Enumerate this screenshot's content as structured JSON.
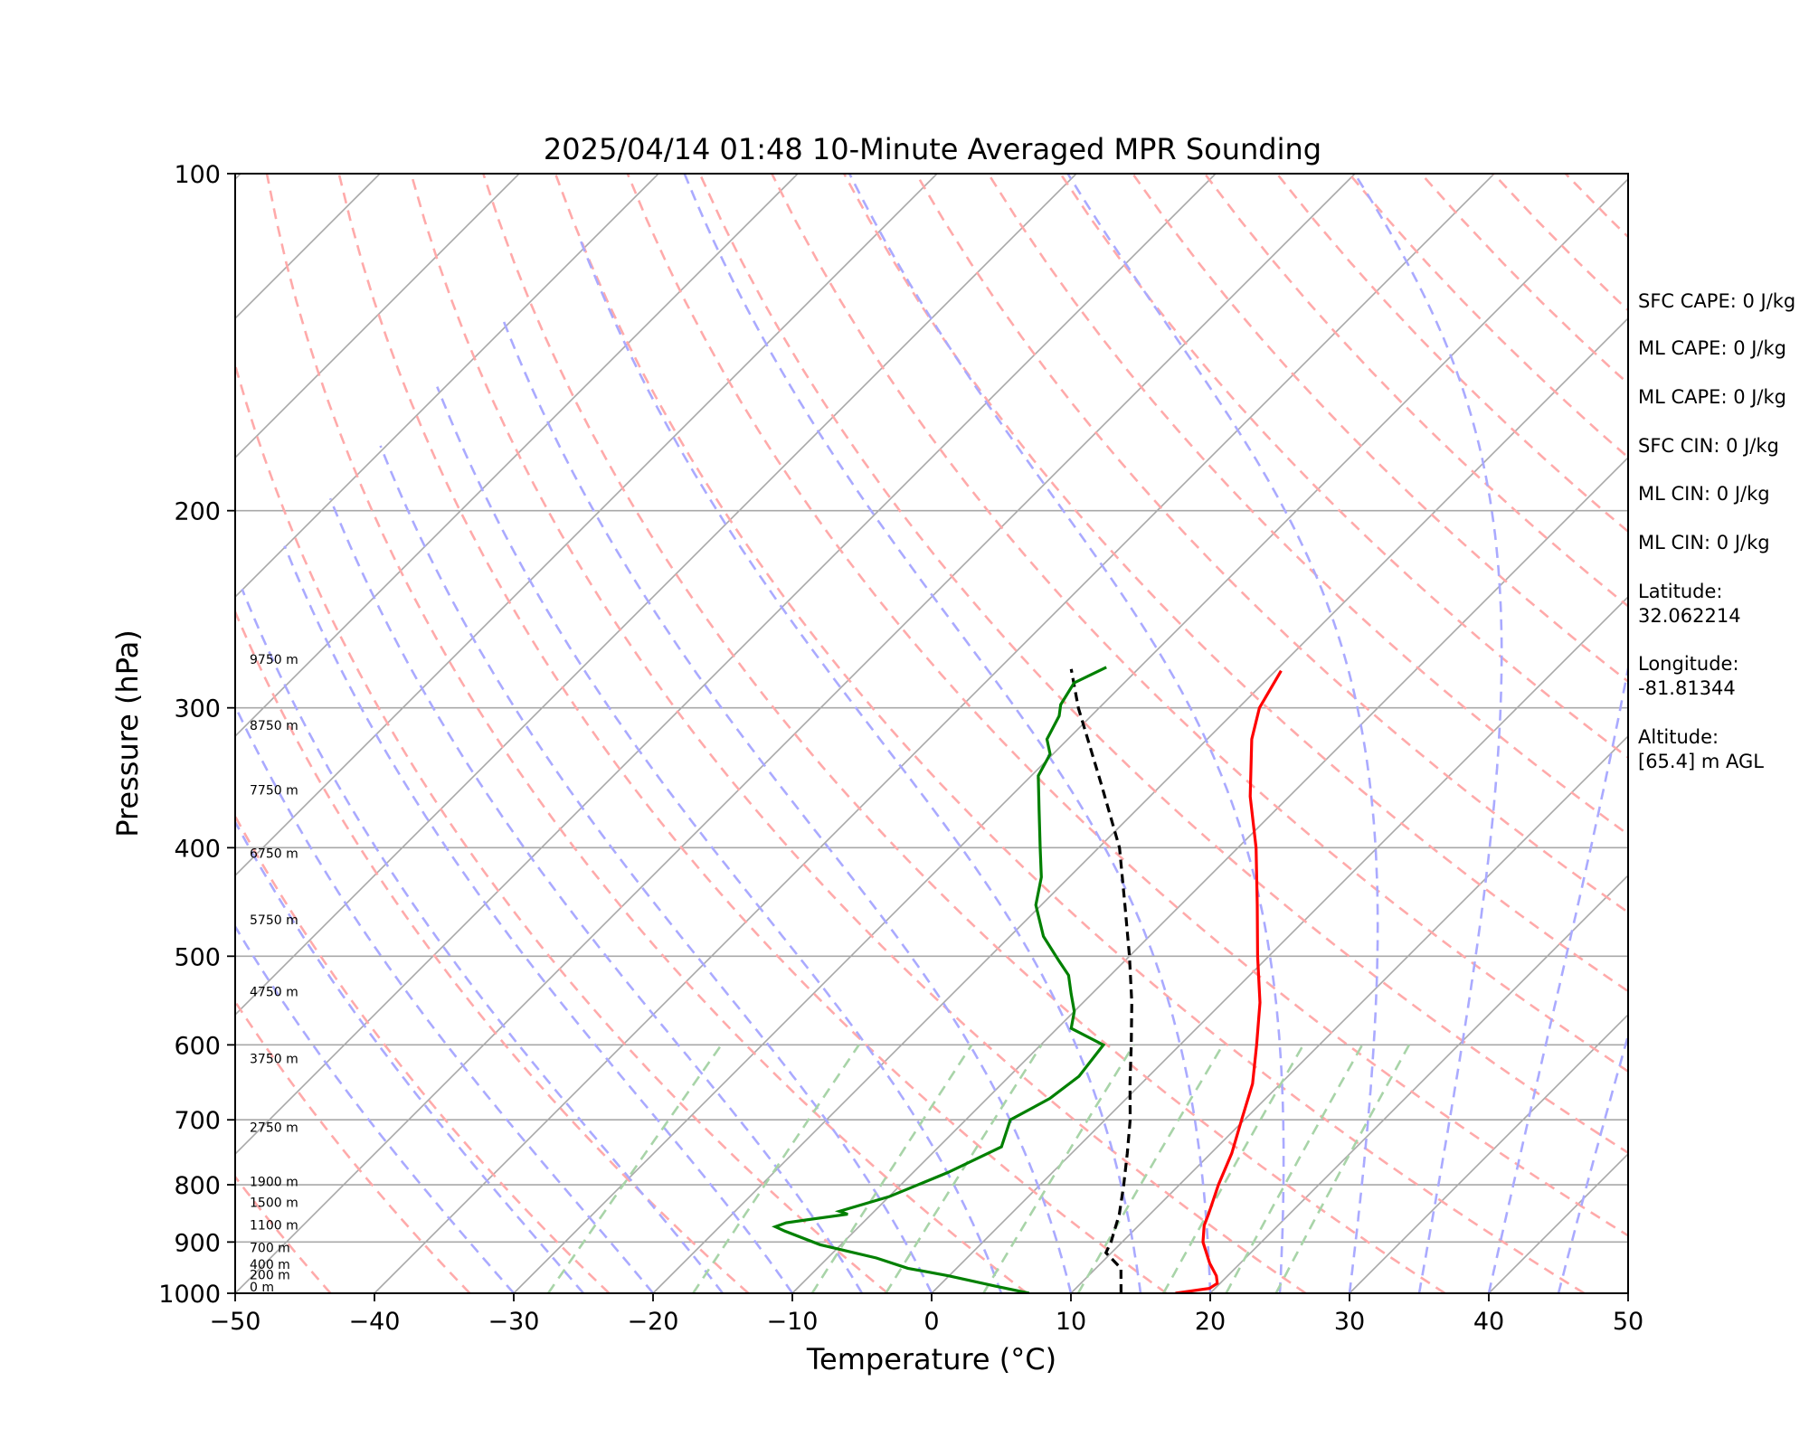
{
  "chart_data": {
    "type": "skew-t",
    "title": "2025/04/14 01:48 10-Minute Averaged MPR Sounding",
    "xlabel": "Temperature (°C)",
    "ylabel": "Pressure (hPa)",
    "xlim": [
      -50,
      50
    ],
    "ylim": [
      1000,
      100
    ],
    "y_scale": "log",
    "x_ticks": [
      -50,
      -40,
      -30,
      -20,
      -10,
      0,
      10,
      20,
      30,
      40,
      50
    ],
    "x_tick_labels": [
      "−50",
      "−40",
      "−30",
      "−20",
      "−10",
      "0",
      "10",
      "20",
      "30",
      "40",
      "50"
    ],
    "y_ticks": [
      1000,
      900,
      800,
      700,
      600,
      500,
      400,
      300,
      200,
      100
    ],
    "y_tick_labels": [
      "1000",
      "900",
      "800",
      "700",
      "600",
      "500",
      "400",
      "300",
      "200",
      "100"
    ],
    "colors": {
      "temperature": "#ff0000",
      "dewpoint": "#008000",
      "parcel": "#000000",
      "isotherm": "#a8a8a8",
      "dry_adiabat": "#ffaaaa",
      "moist_adiabat": "#aaaaff",
      "mixing_ratio": "#a8d4a8"
    },
    "temperature": [
      {
        "p": 1000,
        "t": 17.5
      },
      {
        "p": 990,
        "t": 19.6
      },
      {
        "p": 980,
        "t": 19.8
      },
      {
        "p": 965,
        "t": 19.2
      },
      {
        "p": 940,
        "t": 17.8
      },
      {
        "p": 900,
        "t": 15.8
      },
      {
        "p": 870,
        "t": 14.7
      },
      {
        "p": 850,
        "t": 14.2
      },
      {
        "p": 800,
        "t": 12.8
      },
      {
        "p": 750,
        "t": 11.5
      },
      {
        "p": 700,
        "t": 9.8
      },
      {
        "p": 650,
        "t": 8.0
      },
      {
        "p": 600,
        "t": 5.5
      },
      {
        "p": 550,
        "t": 2.7
      },
      {
        "p": 500,
        "t": -0.8
      },
      {
        "p": 450,
        "t": -4.5
      },
      {
        "p": 400,
        "t": -8.7
      },
      {
        "p": 360,
        "t": -12.8
      },
      {
        "p": 320,
        "t": -16.8
      },
      {
        "p": 300,
        "t": -18.5
      },
      {
        "p": 278,
        "t": -19.6
      }
    ],
    "dewpoint": [
      {
        "p": 1000,
        "t": 7.0
      },
      {
        "p": 985,
        "t": 4.0
      },
      {
        "p": 965,
        "t": 0.0
      },
      {
        "p": 950,
        "t": -3.5
      },
      {
        "p": 930,
        "t": -6.5
      },
      {
        "p": 905,
        "t": -11.5
      },
      {
        "p": 880,
        "t": -15.0
      },
      {
        "p": 872,
        "t": -16.0
      },
      {
        "p": 865,
        "t": -15.5
      },
      {
        "p": 850,
        "t": -11.7
      },
      {
        "p": 845,
        "t": -12.5
      },
      {
        "p": 820,
        "t": -10.0
      },
      {
        "p": 780,
        "t": -7.5
      },
      {
        "p": 740,
        "t": -5.5
      },
      {
        "p": 700,
        "t": -6.8
      },
      {
        "p": 670,
        "t": -5.5
      },
      {
        "p": 640,
        "t": -5.0
      },
      {
        "p": 600,
        "t": -5.5
      },
      {
        "p": 580,
        "t": -9.0
      },
      {
        "p": 560,
        "t": -10.0
      },
      {
        "p": 540,
        "t": -11.5
      },
      {
        "p": 520,
        "t": -13.0
      },
      {
        "p": 505,
        "t": -14.7
      },
      {
        "p": 480,
        "t": -17.6
      },
      {
        "p": 450,
        "t": -20.4
      },
      {
        "p": 425,
        "t": -22.0
      },
      {
        "p": 400,
        "t": -24.2
      },
      {
        "p": 370,
        "t": -27.0
      },
      {
        "p": 345,
        "t": -29.5
      },
      {
        "p": 330,
        "t": -30.2
      },
      {
        "p": 320,
        "t": -31.5
      },
      {
        "p": 305,
        "t": -32.3
      },
      {
        "p": 298,
        "t": -33.0
      },
      {
        "p": 285,
        "t": -33.6
      },
      {
        "p": 276,
        "t": -32.4
      }
    ],
    "parcel": [
      {
        "p": 1000,
        "t": 13.6
      },
      {
        "p": 950,
        "t": 11.8
      },
      {
        "p": 920,
        "t": 9.6
      },
      {
        "p": 900,
        "t": 9.2
      },
      {
        "p": 850,
        "t": 7.8
      },
      {
        "p": 800,
        "t": 6.0
      },
      {
        "p": 750,
        "t": 4.0
      },
      {
        "p": 700,
        "t": 1.8
      },
      {
        "p": 650,
        "t": -0.8
      },
      {
        "p": 600,
        "t": -3.5
      },
      {
        "p": 550,
        "t": -6.5
      },
      {
        "p": 500,
        "t": -10.0
      },
      {
        "p": 450,
        "t": -14.0
      },
      {
        "p": 400,
        "t": -18.5
      },
      {
        "p": 350,
        "t": -24.5
      },
      {
        "p": 300,
        "t": -31.5
      },
      {
        "p": 277,
        "t": -34.8
      }
    ],
    "height_labels": [
      {
        "p": 1000,
        "label": "0 m"
      },
      {
        "p": 975,
        "label": "200 m"
      },
      {
        "p": 955,
        "label": "400 m"
      },
      {
        "p": 922,
        "label": "700 m"
      },
      {
        "p": 880,
        "label": "1100 m"
      },
      {
        "p": 840,
        "label": "1500 m"
      },
      {
        "p": 805,
        "label": "1900 m"
      },
      {
        "p": 720,
        "label": "2750 m"
      },
      {
        "p": 625,
        "label": "3750 m"
      },
      {
        "p": 545,
        "label": "4750 m"
      },
      {
        "p": 470,
        "label": "5750 m"
      },
      {
        "p": 410,
        "label": "6750 m"
      },
      {
        "p": 360,
        "label": "7750 m"
      },
      {
        "p": 315,
        "label": "8750 m"
      },
      {
        "p": 275,
        "label": "9750 m"
      }
    ]
  },
  "info_panel": {
    "sfc_cape": "SFC CAPE: 0 J/kg",
    "ml_cape_1": "ML CAPE: 0 J/kg",
    "ml_cape_2": "ML CAPE: 0 J/kg",
    "sfc_cin": "SFC CIN: 0 J/kg",
    "ml_cin_1": "ML CIN: 0 J/kg",
    "ml_cin_2": "ML CIN: 0 J/kg",
    "latitude_label": "Latitude:",
    "latitude_value": "32.062214",
    "longitude_label": "Longitude:",
    "longitude_value": "-81.81344",
    "altitude_label": "Altitude:",
    "altitude_value": "[65.4] m AGL"
  }
}
